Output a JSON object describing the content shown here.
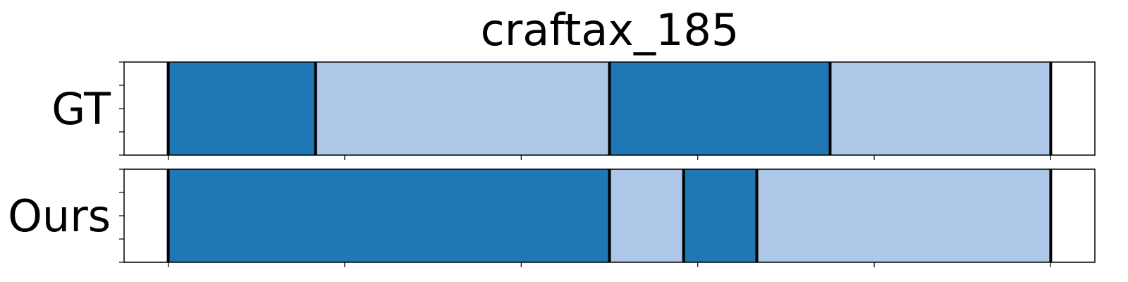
{
  "chart_data": {
    "type": "segmentation-timeline",
    "title": "craftax_185",
    "xlim": [
      0,
      110
    ],
    "rows": [
      {
        "label": "GT",
        "segments": [
          {
            "start": 5,
            "end": 21.7,
            "color": "#1f77b4"
          },
          {
            "start": 21.7,
            "end": 55,
            "color": "#aec7e8"
          },
          {
            "start": 55,
            "end": 80,
            "color": "#1f77b4"
          },
          {
            "start": 80,
            "end": 105,
            "color": "#aec7e8"
          }
        ],
        "boundaries": [
          5,
          21.7,
          55,
          80,
          105
        ]
      },
      {
        "label": "Ours",
        "segments": [
          {
            "start": 5,
            "end": 55,
            "color": "#1f77b4"
          },
          {
            "start": 55,
            "end": 63.4,
            "color": "#aec7e8"
          },
          {
            "start": 63.4,
            "end": 71.7,
            "color": "#1f77b4"
          },
          {
            "start": 71.7,
            "end": 105,
            "color": "#aec7e8"
          }
        ],
        "boundaries": [
          5,
          55,
          63.4,
          71.7,
          105
        ]
      }
    ],
    "x_ticks": [
      5,
      25,
      45,
      65,
      85,
      105
    ],
    "y_ticks_per_row": 5,
    "x_tick_labels_shown": false,
    "grid": false,
    "colors": {
      "dark": "#1f77b4",
      "light": "#aec7e8",
      "boundary": "#000000"
    }
  }
}
